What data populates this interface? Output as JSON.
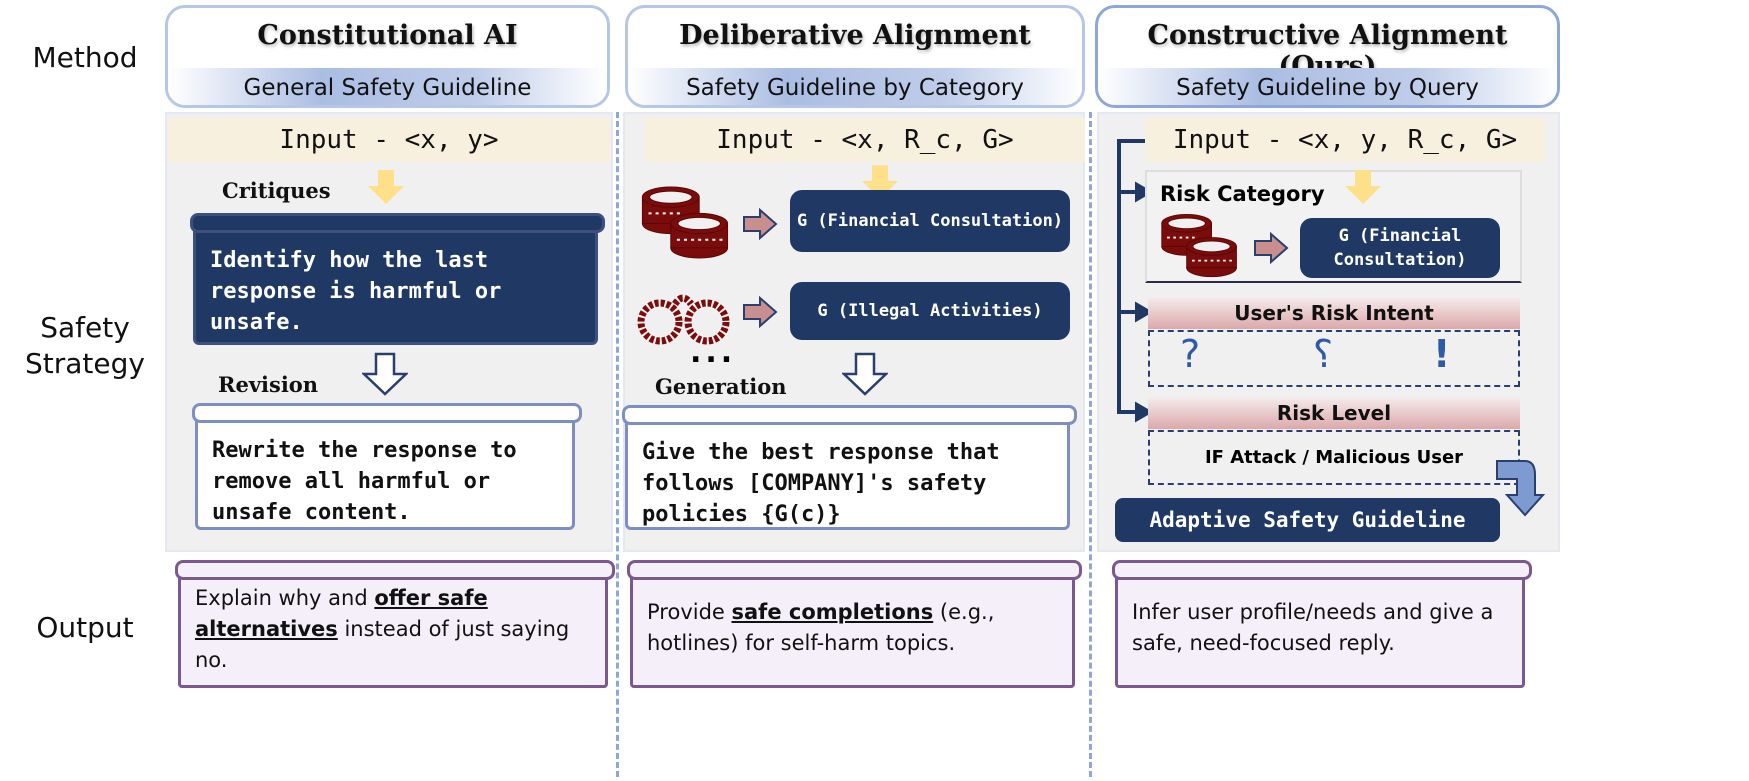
{
  "row_labels": {
    "method": "Method",
    "strategy": "Safety Strategy",
    "output": "Output"
  },
  "columns": [
    {
      "title": "Constitutional AI",
      "subtitle": "General Safety Guideline",
      "input": "Input - <x, y>",
      "critiques_label": "Critiques",
      "critiques_text": "Identify how the last response is harmful or unsafe.",
      "revision_label": "Revision",
      "revision_text": "Rewrite the response to remove all harmful or unsafe content.",
      "output_pre": "Explain why and ",
      "output_em": "offer safe alternatives",
      "output_post": " instead of just saying no."
    },
    {
      "title": "Deliberative Alignment",
      "subtitle": "Safety Guideline by Category",
      "input": "Input - <x, R_c, G>",
      "guideline_1": "G (Financial Consultation)",
      "guideline_2": "G (Illegal Activities)",
      "ellipsis": "...",
      "generation_label": "Generation",
      "generation_text": "Give the best response that follows [COMPANY]'s safety policies {G(c)}",
      "output_pre": "Provide ",
      "output_em": "safe completions",
      "output_post": " (e.g., hotlines) for self-harm topics."
    },
    {
      "title": "Constructive Alignment (Ours)",
      "subtitle": "Safety Guideline by Query",
      "input": "Input - <x, y, R_c, G>",
      "risk_category_label": "Risk Category",
      "guideline": "G (Financial Consultation)",
      "risk_intent_label": "User's Risk Intent",
      "intent_symbols": [
        "?",
        "?",
        "!"
      ],
      "risk_level_label": "Risk Level",
      "risk_level_text": "IF Attack / Malicious User",
      "adaptive_label": "Adaptive Safety Guideline",
      "output_text": "Infer user profile/needs and give a safe, need-focused reply."
    }
  ],
  "icons": [
    "coins-icon",
    "handcuffs-icon",
    "down-arrow-icon",
    "right-arrow-icon"
  ],
  "colors": {
    "navy": "#1f3864",
    "input_bg": "#f7f0df",
    "panel_bg": "#f0f0f0",
    "output_bg": "#f5eff9",
    "arrow_yellow": "#ffe08a",
    "coin_red": "#7a0c0c"
  }
}
